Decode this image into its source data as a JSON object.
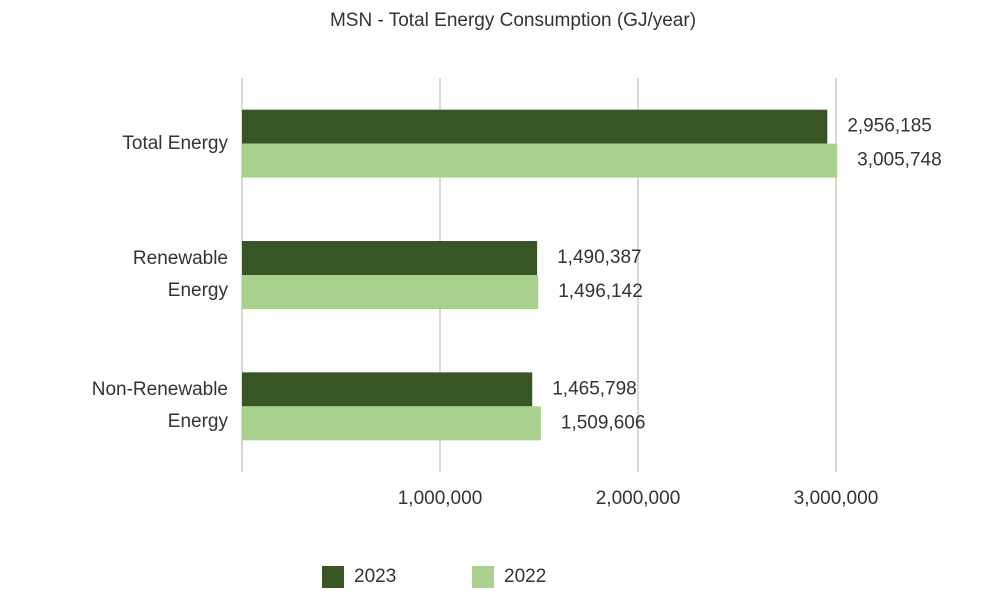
{
  "chart_data": {
    "type": "barh",
    "title": "MSN - Total Energy Consumption (GJ/year)",
    "categories": [
      "Total Energy",
      "Renewable Energy",
      "Non-Renewable Energy"
    ],
    "series": [
      {
        "name": "2023",
        "color": "#375623",
        "values": [
          2956185,
          1490387,
          1465798
        ],
        "value_labels": [
          "2,956,185",
          "1,490,387",
          "1,465,798"
        ]
      },
      {
        "name": "2022",
        "color": "#a9d18e",
        "values": [
          3005748,
          1496142,
          1509606
        ],
        "value_labels": [
          "3,005,748",
          "1,496,142",
          "1,509,606"
        ]
      }
    ],
    "xlim": [
      0,
      3000000
    ],
    "xticks": [
      {
        "value": 1000000,
        "label": "1,000,000"
      },
      {
        "value": 2000000,
        "label": "2,000,000"
      },
      {
        "value": 3000000,
        "label": "3,000,000"
      }
    ],
    "grid": true,
    "legend": "bottom"
  }
}
